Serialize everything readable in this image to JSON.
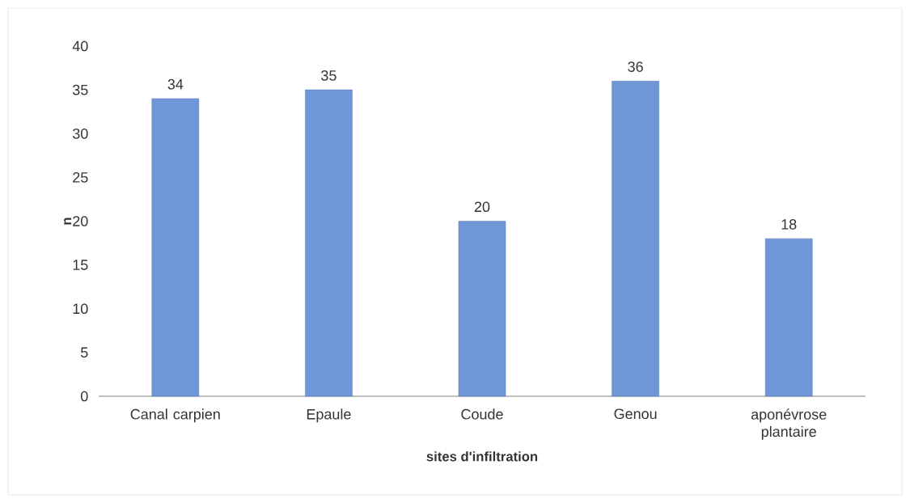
{
  "chart_data": {
    "type": "bar",
    "xlabel": "sites d'infiltration",
    "ylabel": "n",
    "categories": [
      "Canal carpien",
      "Epaule",
      "Coude",
      "Genou",
      "aponévrose plantaire"
    ],
    "values": [
      34,
      35,
      20,
      36,
      18
    ],
    "color": "#6f97d8",
    "data_labels": true,
    "ylim": [
      0,
      40
    ],
    "yticks": [
      0,
      5,
      10,
      15,
      20,
      25,
      30,
      35,
      40
    ],
    "grid": false
  }
}
